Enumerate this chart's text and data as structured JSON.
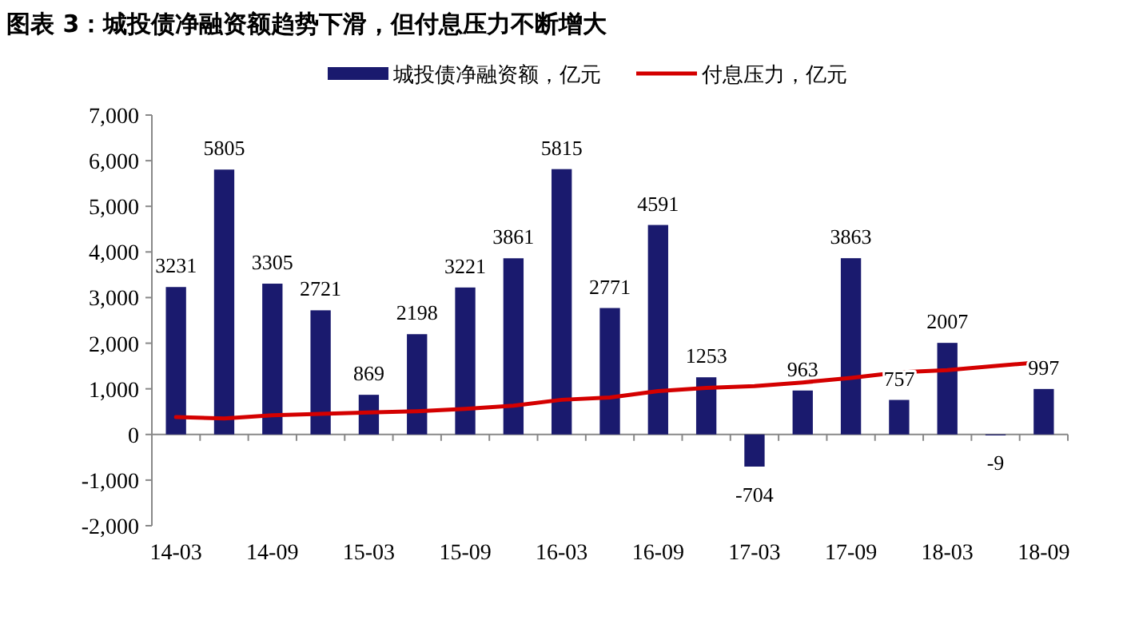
{
  "chart_data": {
    "type": "bar",
    "title": "图表 3：城投债净融资额趋势下滑，但付息压力不断增大",
    "categories": [
      "14-03",
      null,
      "14-09",
      null,
      "15-03",
      null,
      "15-09",
      null,
      "16-03",
      null,
      "16-09",
      null,
      "17-03",
      null,
      "17-09",
      null,
      "18-03",
      null,
      "18-09"
    ],
    "series": [
      {
        "name": "城投债净融资额，亿元",
        "color": "#1a1a6e",
        "values": [
          3231,
          5805,
          3305,
          2721,
          869,
          2198,
          3221,
          3861,
          5815,
          2771,
          4591,
          1253,
          -704,
          963,
          3863,
          757,
          2007,
          -9,
          997
        ],
        "value_labels": [
          "3231",
          "5805",
          "3305",
          "2721",
          "869",
          "2198",
          "3221",
          "3861",
          "5815",
          "2771",
          "4591",
          "1253",
          "-704",
          "963",
          "3863",
          "757",
          "2007",
          "-9",
          "997"
        ]
      },
      {
        "name": "付息压力，亿元",
        "type": "line",
        "color": "#d40000",
        "values": [
          380,
          350,
          420,
          450,
          480,
          510,
          560,
          630,
          760,
          810,
          950,
          1020,
          1060,
          1140,
          1240,
          1360,
          1410,
          1500,
          1590
        ]
      }
    ],
    "ylim": [
      -2000,
      7000
    ],
    "yticks": [
      {
        "value": -2000,
        "label": "-2,000"
      },
      {
        "value": -1000,
        "label": "-1,000"
      },
      0,
      {
        "value": 1000,
        "label": "1,000"
      },
      {
        "value": 2000,
        "label": "2,000"
      },
      {
        "value": 3000,
        "label": "3,000"
      },
      {
        "value": 4000,
        "label": "4,000"
      },
      {
        "value": 5000,
        "label": "5,000"
      },
      {
        "value": 6000,
        "label": "6,000"
      },
      {
        "value": 7000,
        "label": "7,000"
      }
    ],
    "legend": "top",
    "marker": "none",
    "line_style": "solid"
  }
}
